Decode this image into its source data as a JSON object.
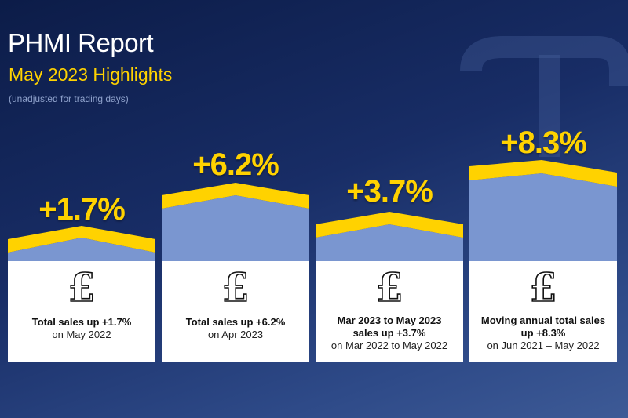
{
  "header": {
    "title": "PHMI Report",
    "subtitle": "May 2023 Highlights",
    "note": "(unadjusted for trading days)"
  },
  "colors": {
    "accent": "#ffd200",
    "bar_fill": "#7a96d0",
    "background": "#162a60"
  },
  "cards": [
    {
      "value": "+1.7%",
      "icon": "pound-sign-icon",
      "lines_bold": [
        "Total sales up +1.7%"
      ],
      "line_regular": "on May 2022"
    },
    {
      "value": "+6.2%",
      "icon": "pound-sign-icon",
      "lines_bold": [
        "Total sales up +6.2%"
      ],
      "line_regular": "on Apr 2023"
    },
    {
      "value": "+3.7%",
      "icon": "pound-sign-icon",
      "lines_bold": [
        "Mar 2023 to May 2023",
        "sales up +3.7%"
      ],
      "line_regular": "on Mar 2022 to May 2022"
    },
    {
      "value": "+8.3%",
      "icon": "pound-sign-icon",
      "lines_bold": [
        "Moving annual total sales",
        "up +8.3%"
      ],
      "line_regular": "on Jun 2021 – May 2022"
    }
  ]
}
